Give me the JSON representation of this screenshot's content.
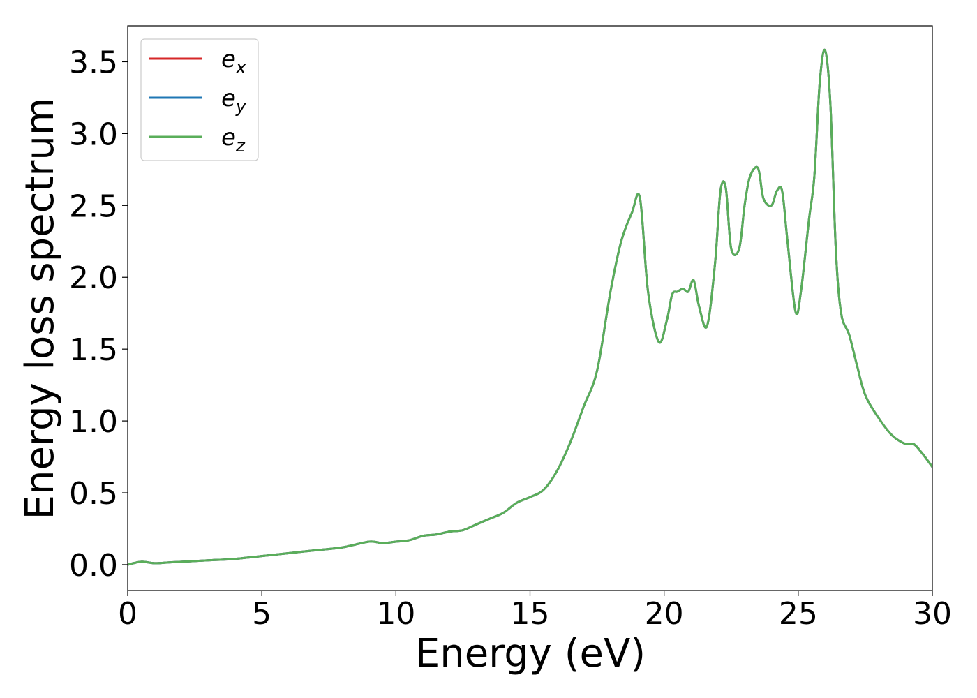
{
  "chart_data": {
    "type": "line",
    "title": "",
    "xlabel": "Energy (eV)",
    "ylabel": "Energy loss spectrum",
    "xlim": [
      0,
      30
    ],
    "ylim": [
      -0.18,
      3.75
    ],
    "xticks": [
      0,
      5,
      10,
      15,
      20,
      25,
      30
    ],
    "xtick_labels": [
      "0",
      "5",
      "10",
      "15",
      "20",
      "25",
      "30"
    ],
    "yticks": [
      0.0,
      0.5,
      1.0,
      1.5,
      2.0,
      2.5,
      3.0,
      3.5
    ],
    "ytick_labels": [
      "0.0",
      "0.5",
      "1.0",
      "1.5",
      "2.0",
      "2.5",
      "3.0",
      "3.5"
    ],
    "grid": false,
    "legend_position": "top-left",
    "x": [
      0,
      0.5,
      1.0,
      1.5,
      2.0,
      3.0,
      4.0,
      5.0,
      6.0,
      7.0,
      8.0,
      9.0,
      9.5,
      10.0,
      10.5,
      11.0,
      11.5,
      12.0,
      12.5,
      13.0,
      13.5,
      14.0,
      14.5,
      15.0,
      15.5,
      16.0,
      16.5,
      17.0,
      17.5,
      18.0,
      18.4,
      18.8,
      19.1,
      19.4,
      19.8,
      20.1,
      20.3,
      20.5,
      20.7,
      20.9,
      21.1,
      21.3,
      21.6,
      21.9,
      22.1,
      22.3,
      22.5,
      22.8,
      23.0,
      23.2,
      23.5,
      23.7,
      24.0,
      24.2,
      24.4,
      24.6,
      24.9,
      25.1,
      25.4,
      25.6,
      25.8,
      26.0,
      26.2,
      26.4,
      26.6,
      26.9,
      27.2,
      27.5,
      28.0,
      28.5,
      29.0,
      29.3,
      29.6,
      30.0
    ],
    "series": [
      {
        "name": "e_x",
        "color": "#d62728",
        "values": [
          0.0,
          0.02,
          0.01,
          0.015,
          0.02,
          0.03,
          0.04,
          0.06,
          0.08,
          0.1,
          0.12,
          0.16,
          0.15,
          0.16,
          0.17,
          0.2,
          0.21,
          0.23,
          0.24,
          0.28,
          0.32,
          0.36,
          0.43,
          0.47,
          0.52,
          0.65,
          0.85,
          1.1,
          1.35,
          1.9,
          2.25,
          2.45,
          2.55,
          1.9,
          1.55,
          1.7,
          1.88,
          1.9,
          1.92,
          1.9,
          1.98,
          1.8,
          1.66,
          2.1,
          2.6,
          2.62,
          2.2,
          2.2,
          2.5,
          2.7,
          2.76,
          2.55,
          2.5,
          2.6,
          2.6,
          2.25,
          1.76,
          1.9,
          2.4,
          2.7,
          3.35,
          3.58,
          3.2,
          2.2,
          1.75,
          1.6,
          1.38,
          1.18,
          1.02,
          0.9,
          0.84,
          0.84,
          0.78,
          0.68
        ]
      },
      {
        "name": "e_y",
        "color": "#1f77b4",
        "values": [
          0.0,
          0.02,
          0.01,
          0.015,
          0.02,
          0.03,
          0.04,
          0.06,
          0.08,
          0.1,
          0.12,
          0.16,
          0.15,
          0.16,
          0.17,
          0.2,
          0.21,
          0.23,
          0.24,
          0.28,
          0.32,
          0.36,
          0.43,
          0.47,
          0.52,
          0.65,
          0.85,
          1.1,
          1.35,
          1.9,
          2.25,
          2.45,
          2.55,
          1.9,
          1.55,
          1.7,
          1.88,
          1.9,
          1.92,
          1.9,
          1.98,
          1.8,
          1.66,
          2.1,
          2.6,
          2.62,
          2.2,
          2.2,
          2.5,
          2.7,
          2.76,
          2.55,
          2.5,
          2.6,
          2.6,
          2.25,
          1.76,
          1.9,
          2.4,
          2.7,
          3.35,
          3.58,
          3.2,
          2.2,
          1.75,
          1.6,
          1.38,
          1.18,
          1.02,
          0.9,
          0.84,
          0.84,
          0.78,
          0.68
        ]
      },
      {
        "name": "e_z",
        "color": "#5aae5a",
        "values": [
          0.0,
          0.02,
          0.01,
          0.015,
          0.02,
          0.03,
          0.04,
          0.06,
          0.08,
          0.1,
          0.12,
          0.16,
          0.15,
          0.16,
          0.17,
          0.2,
          0.21,
          0.23,
          0.24,
          0.28,
          0.32,
          0.36,
          0.43,
          0.47,
          0.52,
          0.65,
          0.85,
          1.1,
          1.35,
          1.9,
          2.25,
          2.45,
          2.55,
          1.9,
          1.55,
          1.7,
          1.88,
          1.9,
          1.92,
          1.9,
          1.98,
          1.8,
          1.66,
          2.1,
          2.6,
          2.62,
          2.2,
          2.2,
          2.5,
          2.7,
          2.76,
          2.55,
          2.5,
          2.6,
          2.6,
          2.25,
          1.76,
          1.9,
          2.4,
          2.7,
          3.35,
          3.58,
          3.2,
          2.2,
          1.75,
          1.6,
          1.38,
          1.18,
          1.02,
          0.9,
          0.84,
          0.84,
          0.78,
          0.68
        ]
      }
    ],
    "legend": [
      {
        "base": "e",
        "sub": "x",
        "color": "#d62728"
      },
      {
        "base": "e",
        "sub": "y",
        "color": "#1f77b4"
      },
      {
        "base": "e",
        "sub": "z",
        "color": "#5aae5a"
      }
    ]
  }
}
